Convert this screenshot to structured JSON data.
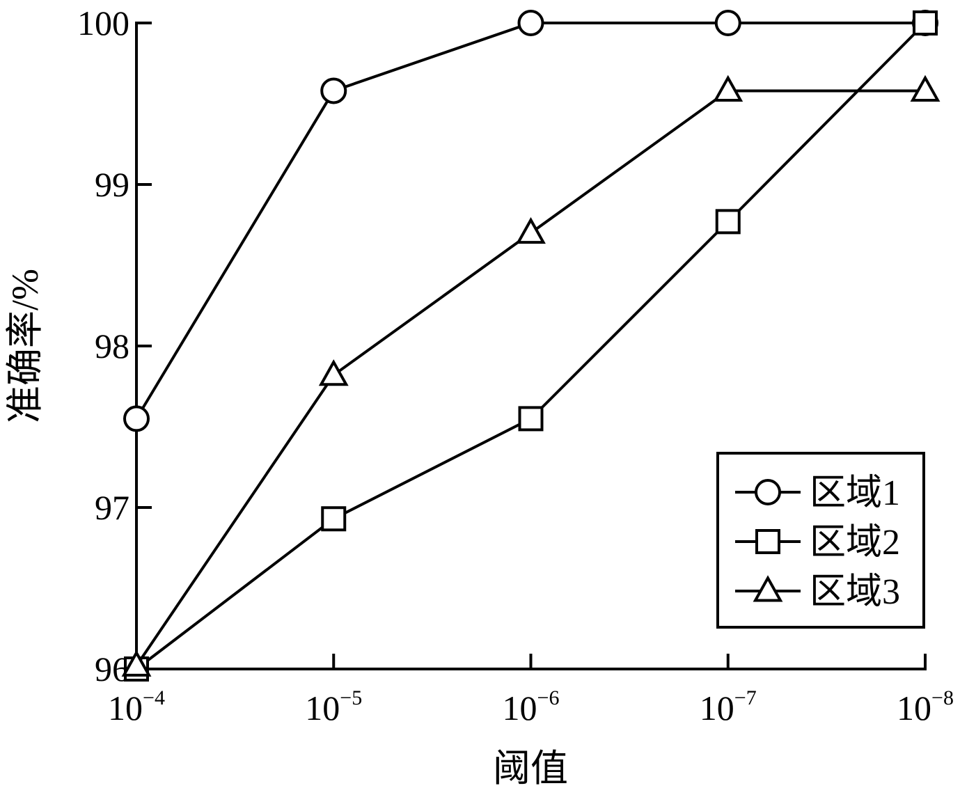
{
  "chart_data": {
    "type": "line",
    "title": "",
    "xlabel": "阈值",
    "ylabel": "准确率/%",
    "x_categories": [
      {
        "base": "10",
        "exp": "−4"
      },
      {
        "base": "10",
        "exp": "−5"
      },
      {
        "base": "10",
        "exp": "−6"
      },
      {
        "base": "10",
        "exp": "−7"
      },
      {
        "base": "10",
        "exp": "−8"
      }
    ],
    "x_values": [
      0.0001,
      1e-05,
      1e-06,
      1e-07,
      1e-08
    ],
    "yticks": [
      "96",
      "97",
      "98",
      "99",
      "100"
    ],
    "ylim": [
      96,
      100
    ],
    "grid": false,
    "legend_position": "bottom-right",
    "series": [
      {
        "name": "区域1",
        "marker": "circle",
        "values": [
          97.55,
          99.58,
          100,
          100,
          100
        ]
      },
      {
        "name": "区域2",
        "marker": "square",
        "values": [
          96,
          96.93,
          97.55,
          98.77,
          100
        ]
      },
      {
        "name": "区域3",
        "marker": "triangle",
        "values": [
          96.02,
          97.82,
          98.7,
          99.58,
          99.58
        ]
      }
    ],
    "colors": {
      "line": "#000000",
      "marker_fill": "#ffffff"
    }
  }
}
